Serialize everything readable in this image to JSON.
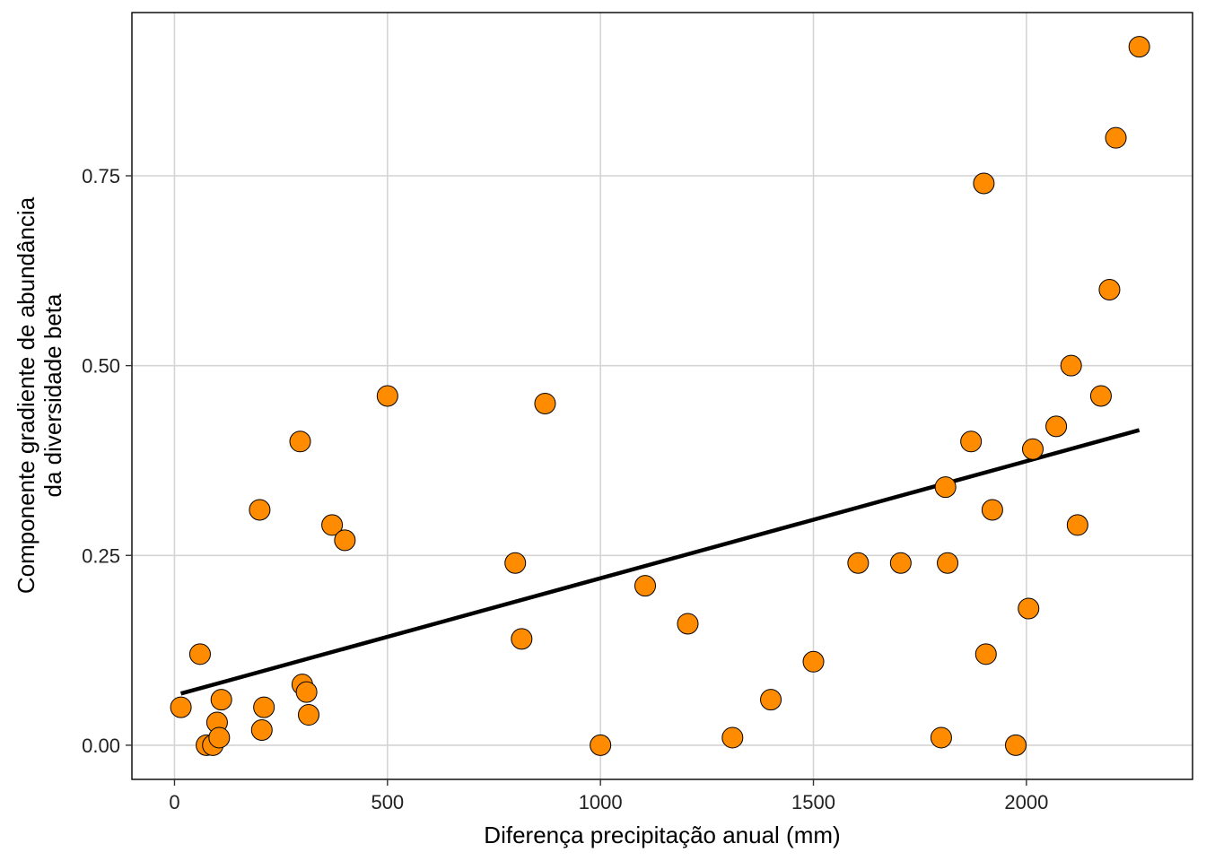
{
  "chart_data": {
    "type": "scatter",
    "title": "",
    "xlabel": "Diferença precipitação anual (mm)",
    "ylabel_lines": [
      "Componente gradiente de abundância",
      "da diversidade beta"
    ],
    "xlim": [
      -100,
      2390
    ],
    "ylim": [
      -0.045,
      0.965
    ],
    "x_ticks": [
      0,
      500,
      1000,
      1500,
      2000
    ],
    "x_tick_labels": [
      "0",
      "500",
      "1000",
      "1500",
      "2000"
    ],
    "y_ticks": [
      0,
      0.25,
      0.5,
      0.75
    ],
    "y_tick_labels": [
      "0.00",
      "0.25",
      "0.50",
      "0.75"
    ],
    "grid": true,
    "legend": "none",
    "point_color": "#FF8C00",
    "point_edge_color": "#000000",
    "line_color": "#000000",
    "points": [
      {
        "x": 15,
        "y": 0.05
      },
      {
        "x": 60,
        "y": 0.12
      },
      {
        "x": 75,
        "y": 0.0
      },
      {
        "x": 90,
        "y": 0.0
      },
      {
        "x": 100,
        "y": 0.03
      },
      {
        "x": 105,
        "y": 0.01
      },
      {
        "x": 110,
        "y": 0.06
      },
      {
        "x": 200,
        "y": 0.31
      },
      {
        "x": 205,
        "y": 0.02
      },
      {
        "x": 210,
        "y": 0.05
      },
      {
        "x": 295,
        "y": 0.4
      },
      {
        "x": 300,
        "y": 0.08
      },
      {
        "x": 310,
        "y": 0.07
      },
      {
        "x": 315,
        "y": 0.04
      },
      {
        "x": 370,
        "y": 0.29
      },
      {
        "x": 400,
        "y": 0.27
      },
      {
        "x": 500,
        "y": 0.46
      },
      {
        "x": 800,
        "y": 0.24
      },
      {
        "x": 815,
        "y": 0.14
      },
      {
        "x": 870,
        "y": 0.45
      },
      {
        "x": 1000,
        "y": 0.0
      },
      {
        "x": 1105,
        "y": 0.21
      },
      {
        "x": 1205,
        "y": 0.16
      },
      {
        "x": 1310,
        "y": 0.01
      },
      {
        "x": 1400,
        "y": 0.06
      },
      {
        "x": 1500,
        "y": 0.11
      },
      {
        "x": 1605,
        "y": 0.24
      },
      {
        "x": 1705,
        "y": 0.24
      },
      {
        "x": 1800,
        "y": 0.01
      },
      {
        "x": 1810,
        "y": 0.34
      },
      {
        "x": 1815,
        "y": 0.24
      },
      {
        "x": 1870,
        "y": 0.4
      },
      {
        "x": 1900,
        "y": 0.74
      },
      {
        "x": 1905,
        "y": 0.12
      },
      {
        "x": 1920,
        "y": 0.31
      },
      {
        "x": 1975,
        "y": 0.0
      },
      {
        "x": 2005,
        "y": 0.18
      },
      {
        "x": 2015,
        "y": 0.39
      },
      {
        "x": 2070,
        "y": 0.42
      },
      {
        "x": 2105,
        "y": 0.5
      },
      {
        "x": 2120,
        "y": 0.29
      },
      {
        "x": 2175,
        "y": 0.46
      },
      {
        "x": 2195,
        "y": 0.6
      },
      {
        "x": 2210,
        "y": 0.8
      },
      {
        "x": 2265,
        "y": 0.92
      }
    ],
    "fit_line": {
      "x": [
        15,
        2265
      ],
      "y": [
        0.068,
        0.415
      ]
    }
  }
}
